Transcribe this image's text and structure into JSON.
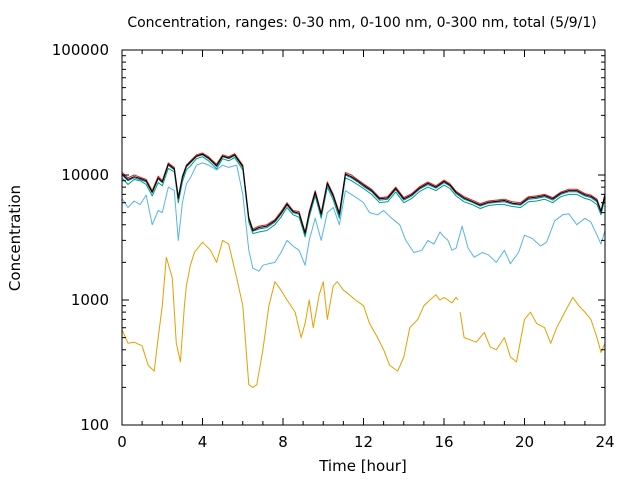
{
  "chart_data": {
    "type": "line",
    "title": "Concentration, ranges: 0-30 nm, 0-100 nm, 0-300 nm, total (5/9/1)",
    "xlabel": "Time [hour]",
    "ylabel": "Concentration",
    "xlim": [
      0,
      24
    ],
    "ylim": [
      100,
      100000
    ],
    "yscale": "log",
    "grid": false,
    "x_ticks": [
      0,
      4,
      8,
      12,
      16,
      20,
      24
    ],
    "x_tick_labels": [
      "0",
      "4",
      "8",
      "12",
      "16",
      "20",
      "24"
    ],
    "y_ticks": [
      100,
      1000,
      10000,
      100000
    ],
    "y_tick_labels": [
      "100",
      "1000",
      "10000",
      "100000"
    ],
    "series": [
      {
        "color": "#e69f00",
        "x": [
          0,
          0.3,
          0.6,
          1.0,
          1.3,
          1.6,
          1.8,
          2.0,
          2.2,
          2.5,
          2.7,
          2.9,
          3.1,
          3.2,
          3.4,
          3.6,
          4.0,
          4.4,
          4.7,
          5.0,
          5.3,
          5.7,
          6.0,
          6.3,
          6.5,
          6.7,
          7.0,
          7.3,
          7.6,
          7.9,
          8.2,
          8.6,
          8.9,
          9.1,
          9.3,
          9.5,
          9.8,
          10.0,
          10.2,
          10.5,
          10.7,
          11.0,
          11.3,
          11.6,
          12.0,
          12.3,
          12.7,
          13.0,
          13.3,
          13.7,
          14.0,
          14.3,
          14.7,
          15.0,
          15.3,
          15.6,
          15.8,
          16.0,
          16.2,
          16.4,
          16.6,
          16.7
        ],
        "y": [
          580,
          450,
          460,
          430,
          300,
          270,
          500,
          900,
          2200,
          1500,
          450,
          320,
          900,
          1300,
          1900,
          2400,
          2900,
          2500,
          2000,
          3000,
          2800,
          1500,
          900,
          210,
          200,
          210,
          400,
          900,
          1400,
          1200,
          1000,
          800,
          500,
          650,
          1000,
          600,
          1100,
          1400,
          700,
          1300,
          1400,
          1200,
          1100,
          1000,
          900,
          650,
          500,
          400,
          300,
          270,
          350,
          600,
          700,
          900,
          1000,
          1100,
          1000,
          1050,
          1000,
          950,
          1050,
          1000
        ]
      },
      {
        "color": "#e69f00",
        "x": [
          16.8,
          17.0,
          17.3,
          17.6,
          18.0,
          18.3,
          18.6,
          19.0,
          19.3,
          19.6,
          20.0,
          20.3,
          20.6,
          21.0,
          21.3,
          21.6,
          22.0,
          22.4,
          22.7,
          23.0,
          23.3,
          23.6,
          23.8,
          24.0
        ],
        "y": [
          800,
          500,
          480,
          460,
          550,
          420,
          400,
          500,
          350,
          320,
          700,
          800,
          650,
          600,
          450,
          600,
          800,
          1050,
          900,
          800,
          700,
          500,
          380,
          450
        ]
      },
      {
        "color": "#56b4e9",
        "x": [
          0,
          0.3,
          0.6,
          0.9,
          1.2,
          1.5,
          1.8,
          2.0,
          2.3,
          2.6,
          2.8,
          3.0,
          3.2,
          3.4,
          3.7,
          4.0,
          4.3,
          4.7,
          5.0,
          5.3,
          5.7,
          6.0,
          6.3,
          6.5,
          6.8,
          7.0,
          7.3,
          7.6,
          7.9,
          8.2,
          8.5,
          8.8,
          9.1,
          9.3,
          9.6,
          9.9,
          10.2,
          10.5,
          10.8,
          11.1,
          11.4,
          11.7,
          12.0,
          12.3,
          12.7,
          13.0,
          13.4,
          13.8,
          14.1,
          14.5,
          14.9,
          15.2,
          15.5,
          15.8,
          16.0,
          16.2,
          16.4,
          16.6,
          16.9,
          17.2,
          17.5,
          17.9,
          18.2,
          18.6,
          19.0,
          19.3,
          19.7,
          20.0,
          20.4,
          20.8,
          21.1,
          21.5,
          21.9,
          22.2,
          22.6,
          23.0,
          23.3,
          23.6,
          23.8,
          24.0
        ],
        "y": [
          6500,
          5500,
          6200,
          5800,
          6900,
          4000,
          5200,
          5000,
          8000,
          7500,
          3000,
          6000,
          8500,
          9500,
          12000,
          12500,
          12000,
          11000,
          12000,
          11500,
          12000,
          7000,
          2500,
          1800,
          1700,
          1900,
          1950,
          2000,
          2400,
          3000,
          2700,
          2500,
          1900,
          3000,
          4500,
          3000,
          5000,
          5500,
          4000,
          7500,
          7000,
          6500,
          6000,
          5000,
          4800,
          5200,
          4500,
          4000,
          3000,
          2400,
          2500,
          3000,
          2800,
          3500,
          3200,
          3000,
          2500,
          2600,
          3900,
          2600,
          2200,
          2400,
          2300,
          2000,
          2500,
          1950,
          2400,
          3300,
          3100,
          2700,
          2900,
          4300,
          4800,
          4900,
          4000,
          4500,
          4200,
          3300,
          2800,
          3600
        ]
      },
      {
        "color": "#009e73",
        "x": [
          0,
          0.3,
          0.6,
          0.9,
          1.2,
          1.5,
          1.8,
          2.0,
          2.3,
          2.6,
          2.8,
          3.0,
          3.2,
          3.4,
          3.7,
          4.0,
          4.3,
          4.7,
          5.0,
          5.3,
          5.6,
          6.0,
          6.3,
          6.5,
          6.8,
          7.2,
          7.6,
          7.9,
          8.2,
          8.5,
          8.8,
          9.1,
          9.3,
          9.6,
          9.9,
          10.2,
          10.5,
          10.8,
          11.1,
          11.4,
          11.7,
          12.0,
          12.4,
          12.8,
          13.2,
          13.6,
          14.0,
          14.4,
          14.8,
          15.2,
          15.6,
          16.0,
          16.3,
          16.6,
          17.0,
          17.4,
          17.8,
          18.2,
          18.6,
          19.0,
          19.4,
          19.8,
          20.2,
          20.6,
          21.0,
          21.4,
          21.8,
          22.2,
          22.6,
          23.0,
          23.3,
          23.6,
          23.8,
          24.0
        ],
        "y": [
          9500,
          8400,
          9200,
          9000,
          8400,
          6800,
          8700,
          8200,
          11300,
          10600,
          6000,
          8800,
          11000,
          11800,
          13500,
          14000,
          13000,
          11200,
          13500,
          13000,
          13800,
          11000,
          4200,
          3400,
          3500,
          3600,
          4000,
          4600,
          5500,
          4800,
          4600,
          3200,
          4600,
          6800,
          4500,
          8000,
          6300,
          4500,
          9500,
          9000,
          8400,
          7800,
          7000,
          6000,
          6100,
          7300,
          6000,
          6500,
          7400,
          8000,
          7500,
          8300,
          7800,
          6800,
          6100,
          5800,
          5400,
          5700,
          5800,
          5800,
          5600,
          5500,
          6100,
          6200,
          6400,
          6000,
          6700,
          7000,
          7000,
          6500,
          6300,
          5800,
          4800,
          6500
        ]
      },
      {
        "color": "#e51e10",
        "x": [
          0,
          0.3,
          0.6,
          0.9,
          1.2,
          1.5,
          1.8,
          2.0,
          2.3,
          2.6,
          2.8,
          3.0,
          3.2,
          3.4,
          3.7,
          4.0,
          4.3,
          4.7,
          5.0,
          5.3,
          5.6,
          6.0,
          6.3,
          6.5,
          6.8,
          7.2,
          7.6,
          7.9,
          8.2,
          8.5,
          8.8,
          9.1,
          9.3,
          9.6,
          9.9,
          10.2,
          10.5,
          10.8,
          11.1,
          11.4,
          11.7,
          12.0,
          12.4,
          12.8,
          13.2,
          13.6,
          14.0,
          14.4,
          14.8,
          15.2,
          15.6,
          16.0,
          16.3,
          16.6,
          17.0,
          17.4,
          17.8,
          18.2,
          18.6,
          19.0,
          19.4,
          19.8,
          20.2,
          20.6,
          21.0,
          21.4,
          21.8,
          22.2,
          22.6,
          23.0,
          23.3,
          23.6,
          23.8,
          24.0
        ],
        "y": [
          10500,
          9500,
          10000,
          9600,
          9200,
          7500,
          9800,
          9000,
          12500,
          11500,
          6700,
          9800,
          12000,
          13000,
          14500,
          15000,
          14000,
          12200,
          14500,
          14000,
          14800,
          12000,
          4600,
          3700,
          3900,
          4000,
          4400,
          5100,
          6000,
          5200,
          5100,
          3500,
          5100,
          7500,
          5000,
          8800,
          7000,
          5000,
          10500,
          10000,
          9200,
          8500,
          7700,
          6600,
          6700,
          8000,
          6600,
          7100,
          8100,
          8800,
          8200,
          9100,
          8500,
          7400,
          6700,
          6300,
          5900,
          6200,
          6300,
          6400,
          6100,
          6000,
          6700,
          6800,
          7000,
          6600,
          7300,
          7700,
          7700,
          7100,
          6900,
          6400,
          5200,
          7100
        ]
      },
      {
        "color": "#0072b2",
        "x": [
          0,
          0.3,
          0.6,
          0.9,
          1.2,
          1.5,
          1.8,
          2.0,
          2.3,
          2.6,
          2.8,
          3.0,
          3.2,
          3.4,
          3.7,
          4.0,
          4.3,
          4.7,
          5.0,
          5.3,
          5.6,
          6.0,
          6.3,
          6.5,
          6.8,
          7.2,
          7.6,
          7.9,
          8.2,
          8.5,
          8.8,
          9.1,
          9.3,
          9.6,
          9.9,
          10.2,
          10.5,
          10.8,
          11.1,
          11.4,
          11.7,
          12.0,
          12.4,
          12.8,
          13.2,
          13.6,
          14.0,
          14.4,
          14.8,
          15.2,
          15.6,
          16.0,
          16.3,
          16.6,
          17.0,
          17.4,
          17.8,
          18.2,
          18.6,
          19.0,
          19.4,
          19.8,
          20.2,
          20.6,
          21.0,
          21.4,
          21.8,
          22.2,
          22.6,
          23.0,
          23.3,
          23.6,
          23.8,
          24.0
        ],
        "y": [
          10000,
          9000,
          9500,
          9200,
          8800,
          7200,
          9300,
          8700,
          12000,
          11000,
          6400,
          9400,
          11600,
          12500,
          14000,
          14500,
          13500,
          11700,
          14000,
          13500,
          14300,
          11500,
          4400,
          3550,
          3700,
          3800,
          4200,
          4850,
          5750,
          5000,
          4850,
          3350,
          4850,
          7100,
          4750,
          8400,
          6650,
          4750,
          10000,
          9500,
          8800,
          8100,
          7350,
          6300,
          6400,
          7650,
          6300,
          6800,
          7750,
          8400,
          7850,
          8700,
          8150,
          7100,
          6400,
          6050,
          5650,
          5950,
          6050,
          6100,
          5850,
          5750,
          6400,
          6500,
          6700,
          6300,
          7000,
          7350,
          7350,
          6800,
          6600,
          6100,
          5000,
          6800
        ]
      },
      {
        "color": "#000000",
        "x": [
          0,
          0.3,
          0.6,
          0.9,
          1.2,
          1.5,
          1.8,
          2.0,
          2.3,
          2.6,
          2.8,
          3.0,
          3.2,
          3.4,
          3.7,
          4.0,
          4.3,
          4.7,
          5.0,
          5.3,
          5.6,
          6.0,
          6.3,
          6.5,
          6.8,
          7.2,
          7.6,
          7.9,
          8.2,
          8.5,
          8.8,
          9.1,
          9.3,
          9.6,
          9.9,
          10.2,
          10.5,
          10.8,
          11.1,
          11.4,
          11.7,
          12.0,
          12.4,
          12.8,
          13.2,
          13.6,
          14.0,
          14.4,
          14.8,
          15.2,
          15.6,
          16.0,
          16.3,
          16.6,
          17.0,
          17.4,
          17.8,
          18.2,
          18.6,
          19.0,
          19.4,
          19.8,
          20.2,
          20.6,
          21.0,
          21.4,
          21.8,
          22.2,
          22.6,
          23.0,
          23.3,
          23.6,
          23.8,
          24.0
        ],
        "y": [
          10200,
          9200,
          9700,
          9400,
          9000,
          7300,
          9500,
          8800,
          12200,
          11200,
          6500,
          9600,
          11800,
          12700,
          14200,
          14700,
          13700,
          11900,
          14200,
          13700,
          14500,
          11700,
          4500,
          3600,
          3800,
          3900,
          4300,
          4950,
          5850,
          5100,
          4950,
          3420,
          4950,
          7300,
          4850,
          8600,
          6800,
          4850,
          10200,
          9700,
          9000,
          8300,
          7500,
          6450,
          6550,
          7800,
          6450,
          6950,
          7900,
          8600,
          8000,
          8900,
          8300,
          7250,
          6550,
          6150,
          5750,
          6050,
          6150,
          6250,
          5950,
          5850,
          6550,
          6650,
          6850,
          6450,
          7150,
          7500,
          7500,
          6950,
          6750,
          6250,
          5100,
          6950
        ]
      }
    ]
  }
}
